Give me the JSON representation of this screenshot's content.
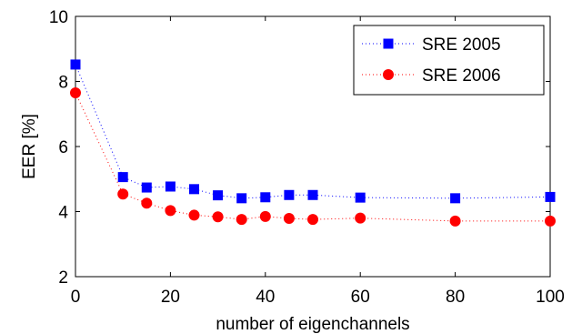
{
  "chart_data": {
    "type": "line",
    "title": "",
    "xlabel": "number of eigenchannels",
    "ylabel": "EER [%]",
    "xlim": [
      0,
      100
    ],
    "ylim": [
      2,
      10
    ],
    "xticks": [
      "0",
      "20",
      "40",
      "60",
      "80",
      "100"
    ],
    "yticks": [
      "2",
      "4",
      "6",
      "8",
      "10"
    ],
    "grid": false,
    "legend_position": "top-right",
    "series": [
      {
        "name": "SRE 2005",
        "color": "#0000ff",
        "marker": "square",
        "line_style": "dotted",
        "x": [
          0,
          10,
          15,
          20,
          25,
          30,
          35,
          40,
          45,
          50,
          60,
          80,
          100
        ],
        "y": [
          8.52,
          5.06,
          4.74,
          4.77,
          4.69,
          4.5,
          4.41,
          4.44,
          4.51,
          4.51,
          4.43,
          4.41,
          4.45
        ]
      },
      {
        "name": "SRE 2006",
        "color": "#ff0000",
        "marker": "circle",
        "line_style": "dotted",
        "x": [
          0,
          10,
          15,
          20,
          25,
          30,
          35,
          40,
          45,
          50,
          60,
          80,
          100
        ],
        "y": [
          7.65,
          4.54,
          4.26,
          4.03,
          3.89,
          3.84,
          3.76,
          3.85,
          3.79,
          3.76,
          3.8,
          3.71,
          3.71
        ]
      }
    ]
  }
}
